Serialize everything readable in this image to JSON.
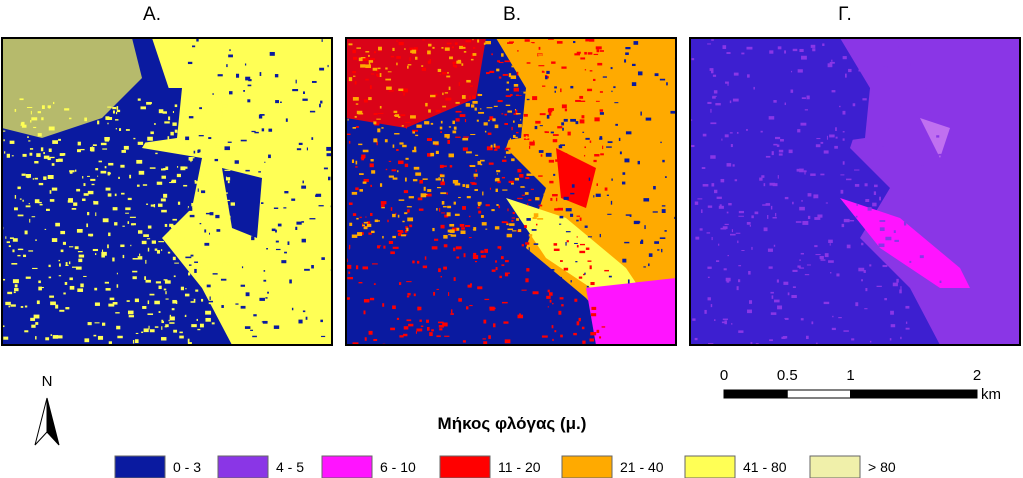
{
  "panels": [
    {
      "title": "Α."
    },
    {
      "title": "Β."
    },
    {
      "title": "Γ."
    }
  ],
  "north_arrow": {
    "label": "N"
  },
  "scale_bar": {
    "ticks": [
      0,
      0.5,
      1,
      2
    ],
    "unit": "km"
  },
  "legend": {
    "title": "Μήκος φλόγας (μ.)",
    "items": [
      {
        "label": "0 - 3",
        "color": "#0a1aa0"
      },
      {
        "label": "4 - 5",
        "color": "#8a36e6"
      },
      {
        "label": "6 - 10",
        "color": "#ff14ff"
      },
      {
        "label": "11 - 20",
        "color": "#ff0000"
      },
      {
        "label": "21 - 40",
        "color": "#ffaa00"
      },
      {
        "label": "41 - 80",
        "color": "#ffff55"
      },
      {
        "label": "> 80",
        "color": "#f0f0aa"
      }
    ]
  }
}
